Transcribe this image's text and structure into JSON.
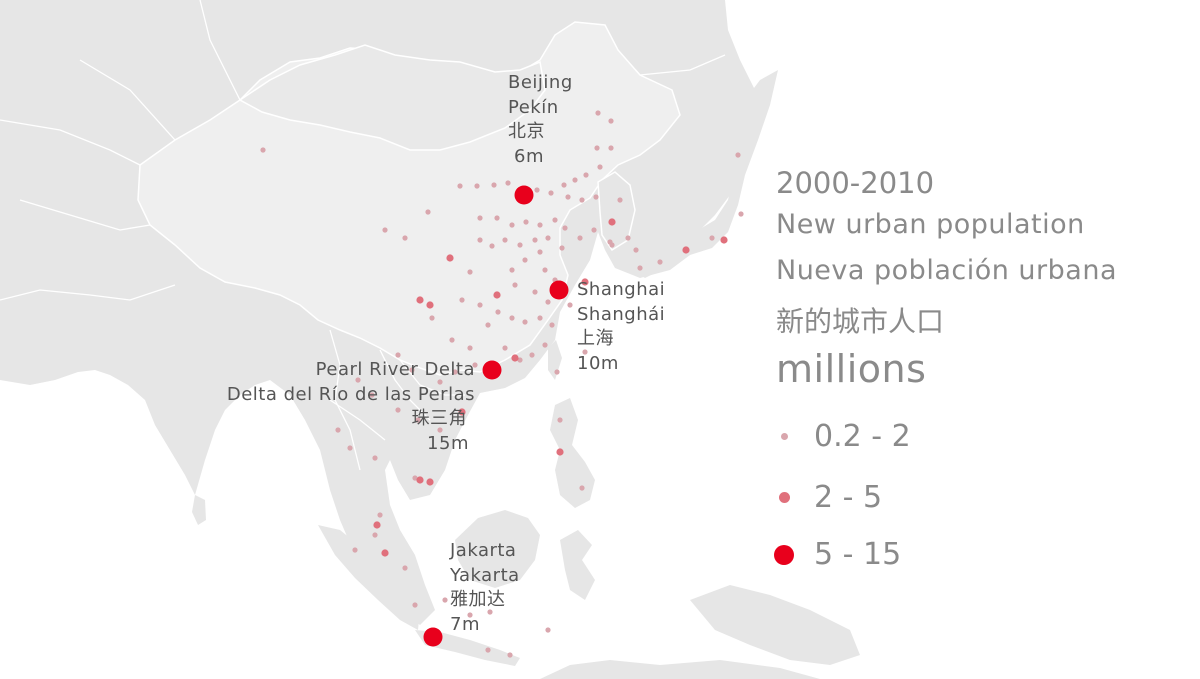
{
  "cities": [
    {
      "key": "beijing",
      "lines": [
        "Beijing",
        "Pekín",
        "北京",
        "6m"
      ],
      "value_millions": 6
    },
    {
      "key": "shanghai",
      "lines": [
        "Shanghai",
        "Shanghái",
        "上海",
        "10m"
      ],
      "value_millions": 10
    },
    {
      "key": "pearl_river_delta",
      "lines": [
        "Pearl River Delta",
        "Delta del Río de las Perlas",
        "珠三角",
        "15m"
      ],
      "value_millions": 15
    },
    {
      "key": "jakarta",
      "lines": [
        "Jakarta",
        "Yakarta",
        "雅加达",
        "7m"
      ],
      "value_millions": 7
    }
  ],
  "legend": {
    "period": "2000-2010",
    "title_en": "New urban population",
    "title_es": "Nueva población urbana",
    "title_zh": "新的城市人口",
    "unit": "millions",
    "classes": [
      {
        "label": "0.2 - 2",
        "color": "#d9a6ad"
      },
      {
        "label": "2 - 5",
        "color": "#e0707c"
      },
      {
        "label": "5 - 15",
        "color": "#e8001c"
      }
    ]
  },
  "colors": {
    "land": "#e6e6e6",
    "china": "#ededed",
    "border": "#ffffff",
    "water": "#ffffff"
  }
}
